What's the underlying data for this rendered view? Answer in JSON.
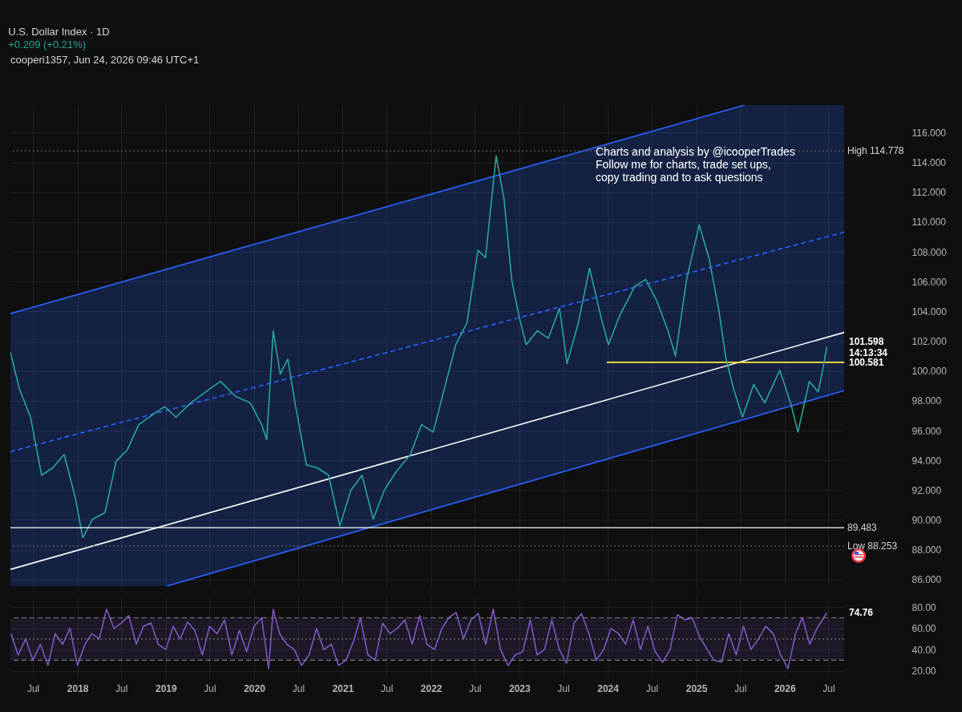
{
  "chart_data": [
    {
      "type": "line",
      "title": "U.S. Dollar Index · 1D",
      "subtitle": "+0.209 (+0.21%)",
      "xlim": [
        "2017-03-30",
        "2026-09-04"
      ],
      "ylim": [
        85.56,
        117.85
      ],
      "xticks": [
        {
          "value": "2017-07-01",
          "label": null
        },
        {
          "value": "2018-01-01",
          "label": null
        },
        {
          "value": "2018-07-01",
          "label": null
        },
        {
          "value": "2019-01-01",
          "label": null
        },
        {
          "value": "2019-07-01",
          "label": null
        },
        {
          "value": "2020-01-01",
          "label": null
        },
        {
          "value": "2020-07-01",
          "label": null
        },
        {
          "value": "2021-01-01",
          "label": null
        },
        {
          "value": "2021-07-01",
          "label": null
        },
        {
          "value": "2022-01-01",
          "label": null
        },
        {
          "value": "2022-07-01",
          "label": null
        },
        {
          "value": "2023-01-01",
          "label": null
        },
        {
          "value": "2023-07-01",
          "label": null
        },
        {
          "value": "2024-01-01",
          "label": null
        },
        {
          "value": "2024-07-01",
          "label": null
        },
        {
          "value": "2025-01-01",
          "label": null
        },
        {
          "value": "2025-07-01",
          "label": null
        },
        {
          "value": "2026-01-01",
          "label": null
        },
        {
          "value": "2026-07-01",
          "label": null
        }
      ],
      "yticks": [
        {
          "value": 86,
          "label": "86.000"
        },
        {
          "value": 88,
          "label": "88.000"
        },
        {
          "value": 90,
          "label": "90.000"
        },
        {
          "value": 92,
          "label": "92.000"
        },
        {
          "value": 94,
          "label": "94.000"
        },
        {
          "value": 96,
          "label": "96.000"
        },
        {
          "value": 98,
          "label": "98.000"
        },
        {
          "value": 100,
          "label": "100.000"
        },
        {
          "value": 102,
          "label": "102.000"
        },
        {
          "value": 104,
          "label": "104.000"
        },
        {
          "value": 106,
          "label": "106.000"
        },
        {
          "value": 108,
          "label": "108.000"
        },
        {
          "value": 110,
          "label": "110.000"
        },
        {
          "value": 112,
          "label": "112.000"
        },
        {
          "value": 114,
          "label": "114.000"
        },
        {
          "value": 116,
          "label": "116.000"
        }
      ],
      "tick_labels": "y",
      "grid": true,
      "marker": "none",
      "series": [
        {
          "color": "#2962ff",
          "line_style": "dashed",
          "x": [
            "2017-03-30",
            "2019-01-04",
            "2025-07-20",
            "2026-09-04"
          ],
          "values": [
            94.59,
            97.35,
            107.56,
            109.32
          ],
          "lower": [
            85.56,
            85.56,
            96.75,
            98.68
          ],
          "upper": [
            103.85,
            106.83,
            117.85,
            117.85
          ]
        },
        {
          "color": "#2962ff",
          "x": [
            "2017-03-30",
            "2025-07-20"
          ],
          "values": [
            103.85,
            117.85
          ]
        },
        {
          "color": "#2962ff",
          "x": [
            "2019-01-04",
            "2026-09-04"
          ],
          "values": [
            85.56,
            98.68
          ]
        },
        {
          "color": "#ffffff",
          "x": [
            "2017-03-30",
            "2026-09-04"
          ],
          "values": [
            86.68,
            102.59
          ]
        },
        {
          "color": "#ffeb3b",
          "x": [
            "2023-12-28",
            "2026-09-04"
          ],
          "values": [
            100.581,
            100.581
          ]
        },
        {
          "color": "#26a69a",
          "x": [
            "2017-03-30",
            "2017-05-06",
            "2017-06-21",
            "2017-08-06",
            "2017-09-21",
            "2017-11-07",
            "2017-12-23",
            "2018-01-23",
            "2018-03-04",
            "2018-04-25",
            "2018-06-10",
            "2018-07-26",
            "2018-09-11",
            "2018-11-11",
            "2018-12-27",
            "2019-02-12",
            "2019-04-14",
            "2019-06-15",
            "2019-08-15",
            "2019-10-16",
            "2019-12-17",
            "2020-02-01",
            "2020-02-22",
            "2020-03-20",
            "2020-04-18",
            "2020-05-19",
            "2020-06-18",
            "2020-08-04",
            "2020-09-19",
            "2020-11-04",
            "2020-12-20",
            "2021-02-04",
            "2021-03-22",
            "2021-05-07",
            "2021-06-22",
            "2021-08-08",
            "2021-10-08",
            "2021-11-23",
            "2022-01-10",
            "2022-02-25",
            "2022-04-13",
            "2022-05-29",
            "2022-07-14",
            "2022-08-14",
            "2022-09-27",
            "2022-10-30",
            "2022-11-30",
            "2022-12-30",
            "2023-01-29",
            "2023-03-16",
            "2023-05-01",
            "2023-06-16",
            "2023-07-17",
            "2023-09-01",
            "2023-10-18",
            "2023-12-03",
            "2024-01-04",
            "2024-02-19",
            "2024-04-21",
            "2024-06-06",
            "2024-07-22",
            "2024-09-06",
            "2024-10-07",
            "2024-11-22",
            "2025-01-13",
            "2025-02-22",
            "2025-04-03",
            "2025-05-04",
            "2025-06-04",
            "2025-07-11",
            "2025-08-26",
            "2025-10-11",
            "2025-12-12",
            "2026-01-26",
            "2026-02-25",
            "2026-04-13",
            "2026-05-20",
            "2026-06-10",
            "2026-06-24"
          ],
          "values": [
            101.27,
            98.8,
            96.9,
            93.0,
            93.5,
            94.4,
            91.5,
            88.8,
            90.05,
            90.5,
            93.95,
            94.7,
            96.4,
            97.1,
            97.6,
            96.9,
            97.85,
            98.6,
            99.3,
            98.3,
            97.85,
            96.4,
            95.4,
            102.7,
            99.8,
            100.8,
            97.85,
            93.7,
            93.5,
            93.0,
            89.6,
            92.0,
            93.0,
            90.05,
            92.0,
            93.2,
            94.4,
            96.4,
            95.9,
            98.8,
            101.76,
            103.2,
            108.1,
            107.6,
            114.44,
            111.5,
            106.15,
            103.7,
            101.76,
            102.7,
            102.2,
            104.2,
            100.5,
            103.2,
            106.9,
            103.7,
            101.76,
            103.7,
            105.66,
            106.15,
            104.7,
            102.7,
            101.0,
            106.15,
            109.8,
            107.6,
            104.2,
            100.8,
            98.8,
            96.9,
            99.1,
            97.85,
            100.05,
            97.85,
            95.9,
            99.3,
            98.6,
            100.3,
            101.598
          ]
        }
      ],
      "ref_lines": [
        {
          "axis": "y",
          "value": 114.778,
          "label": "High 114.778",
          "color": "#5d606b",
          "line_style": "dotted"
        },
        {
          "axis": "y",
          "value": 89.483,
          "label": "89.483",
          "color": "#ffffff",
          "line_style": "solid"
        },
        {
          "axis": "y",
          "value": 88.253,
          "label": "Low 88.253",
          "color": "#5d606b",
          "line_style": "dotted"
        }
      ],
      "annotations": [
        "cooperi1357, Jun 24, 2026 09:46 UTC+1",
        "Charts and analysis by @icooperTrades\nFollow me for charts, trade set ups,\ncopy trading and to ask questions",
        {
          "text": "101.598\n14:13:34",
          "x": "2026-06-24",
          "y": 101.598
        },
        {
          "text": "100.581",
          "x": "2026-09-04",
          "y": 100.581
        }
      ]
    },
    {
      "type": "line",
      "xlim": [
        "2017-03-30",
        "2026-09-04"
      ],
      "ylim": [
        13.6,
        89.3
      ],
      "xticks": [
        {
          "value": "2017-07-01",
          "label": "Jul"
        },
        {
          "value": "2018-01-01",
          "label": "2018"
        },
        {
          "value": "2018-07-01",
          "label": "Jul"
        },
        {
          "value": "2019-01-01",
          "label": "2019"
        },
        {
          "value": "2019-07-01",
          "label": "Jul"
        },
        {
          "value": "2020-01-01",
          "label": "2020"
        },
        {
          "value": "2020-07-01",
          "label": "Jul"
        },
        {
          "value": "2021-01-01",
          "label": "2021"
        },
        {
          "value": "2021-07-01",
          "label": "Jul"
        },
        {
          "value": "2022-01-01",
          "label": "2022"
        },
        {
          "value": "2022-07-01",
          "label": "Jul"
        },
        {
          "value": "2023-01-01",
          "label": "2023"
        },
        {
          "value": "2023-07-01",
          "label": "Jul"
        },
        {
          "value": "2024-01-01",
          "label": "2024"
        },
        {
          "value": "2024-07-01",
          "label": "Jul"
        },
        {
          "value": "2025-01-01",
          "label": "2025"
        },
        {
          "value": "2025-07-01",
          "label": "Jul"
        },
        {
          "value": "2026-01-01",
          "label": "2026"
        },
        {
          "value": "2026-07-01",
          "label": "Jul"
        }
      ],
      "yticks": [
        {
          "value": 20,
          "label": "20.00"
        },
        {
          "value": 40,
          "label": "40.00"
        },
        {
          "value": 60,
          "label": "60.00"
        },
        {
          "value": 80,
          "label": "80.00"
        }
      ],
      "grid": true,
      "marker": "none",
      "series": [
        {
          "color": "#7e57c2",
          "x": [
            "2017-04-01",
            "2017-05-01",
            "2017-06-01",
            "2017-07-01",
            "2017-08-01",
            "2017-09-01",
            "2017-10-01",
            "2017-11-01",
            "2017-12-01",
            "2018-01-01",
            "2018-02-01",
            "2018-03-01",
            "2018-04-01",
            "2018-05-01",
            "2018-06-01",
            "2018-07-01",
            "2018-08-01",
            "2018-09-01",
            "2018-10-01",
            "2018-11-01",
            "2018-12-01",
            "2019-01-01",
            "2019-02-01",
            "2019-03-01",
            "2019-04-01",
            "2019-05-01",
            "2019-06-01",
            "2019-07-01",
            "2019-08-01",
            "2019-09-01",
            "2019-10-01",
            "2019-11-01",
            "2019-12-01",
            "2020-01-01",
            "2020-02-01",
            "2020-03-01",
            "2020-03-20",
            "2020-04-15",
            "2020-05-15",
            "2020-06-15",
            "2020-07-15",
            "2020-08-15",
            "2020-09-15",
            "2020-10-15",
            "2020-11-15",
            "2020-12-15",
            "2021-01-15",
            "2021-02-15",
            "2021-03-15",
            "2021-04-15",
            "2021-05-15",
            "2021-06-15",
            "2021-07-15",
            "2021-08-15",
            "2021-09-15",
            "2021-10-15",
            "2021-11-15",
            "2021-12-15",
            "2022-01-15",
            "2022-02-15",
            "2022-03-15",
            "2022-04-15",
            "2022-05-15",
            "2022-06-15",
            "2022-07-15",
            "2022-08-15",
            "2022-09-15",
            "2022-10-15",
            "2022-11-15",
            "2022-12-15",
            "2023-01-15",
            "2023-02-15",
            "2023-03-15",
            "2023-04-15",
            "2023-05-15",
            "2023-06-15",
            "2023-07-15",
            "2023-08-15",
            "2023-09-15",
            "2023-10-15",
            "2023-11-15",
            "2023-12-15",
            "2024-01-15",
            "2024-02-15",
            "2024-03-15",
            "2024-04-15",
            "2024-05-15",
            "2024-06-15",
            "2024-07-15",
            "2024-08-15",
            "2024-09-15",
            "2024-10-15",
            "2024-11-15",
            "2024-12-15",
            "2025-01-15",
            "2025-02-15",
            "2025-03-15",
            "2025-04-15",
            "2025-05-15",
            "2025-06-15",
            "2025-07-15",
            "2025-08-15",
            "2025-09-15",
            "2025-10-15",
            "2025-11-15",
            "2025-12-15",
            "2026-01-15",
            "2026-02-15",
            "2026-03-15",
            "2026-04-15",
            "2026-05-15",
            "2026-06-24"
          ],
          "values": [
            55,
            35,
            50,
            30,
            45,
            25,
            55,
            45,
            60,
            25,
            45,
            55,
            50,
            78,
            60,
            65,
            72,
            45,
            62,
            65,
            45,
            40,
            62,
            50,
            66,
            58,
            35,
            62,
            55,
            68,
            35,
            58,
            38,
            62,
            70,
            22,
            78,
            55,
            45,
            40,
            25,
            35,
            60,
            40,
            45,
            25,
            30,
            48,
            70,
            35,
            30,
            65,
            55,
            60,
            68,
            45,
            72,
            45,
            40,
            60,
            70,
            75,
            50,
            68,
            74,
            45,
            78,
            40,
            25,
            35,
            38,
            68,
            35,
            40,
            68,
            40,
            27,
            65,
            74,
            55,
            30,
            40,
            60,
            55,
            45,
            68,
            40,
            62,
            38,
            28,
            40,
            73,
            68,
            70,
            52,
            40,
            30,
            28,
            55,
            35,
            62,
            40,
            50,
            62,
            55,
            35,
            22,
            55,
            70,
            45,
            60,
            74.76
          ]
        }
      ],
      "ref_lines": [
        {
          "axis": "y",
          "value": 70,
          "color": "#787b86",
          "line_style": "dashed"
        },
        {
          "axis": "y",
          "value": 50,
          "color": "#787b86",
          "line_style": "dotted"
        },
        {
          "axis": "y",
          "value": 30,
          "color": "#787b86",
          "line_style": "dashed"
        }
      ],
      "bands": [
        {
          "axis": "y",
          "from": 30,
          "to": 70,
          "color": "#7e57c2"
        }
      ],
      "annotations": [
        {
          "text": "74.76",
          "x": "2026-06-24",
          "y": 74.76
        }
      ]
    }
  ]
}
